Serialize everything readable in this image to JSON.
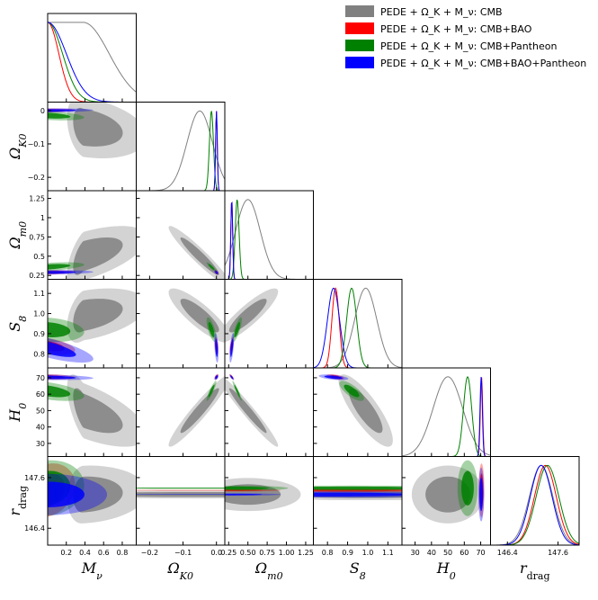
{
  "chart_data": {
    "type": "triangle-corner",
    "legend": [
      {
        "label": "PEDE + Ω_K + M_ν: CMB",
        "color": "#808080"
      },
      {
        "label": "PEDE + Ω_K + M_ν: CMB+BAO",
        "color": "#ff0000"
      },
      {
        "label": "PEDE + Ω_K + M_ν: CMB+Pantheon",
        "color": "#008000"
      },
      {
        "label": "PEDE + Ω_K + M_ν: CMB+BAO+Pantheon",
        "color": "#0000ff"
      }
    ],
    "legend_position": "top-right",
    "parameters": [
      {
        "name": "M_nu",
        "label": "M_ν",
        "range": [
          0,
          0.95
        ],
        "ticks": [
          0.2,
          0.4,
          0.6,
          0.8
        ],
        "tick_labels": [
          "0.2",
          "0.4",
          "0.6",
          "0.8"
        ]
      },
      {
        "name": "Omega_K0",
        "label": "Ω_K0",
        "range": [
          -0.24,
          0.025
        ],
        "ticks": [
          -0.2,
          -0.1,
          0.0
        ],
        "tick_labels": [
          "−0.2",
          "−0.1",
          "0.0"
        ],
        "ytick_labels": [
          "−0.2",
          "−0.1",
          "0"
        ]
      },
      {
        "name": "Omega_m0",
        "label": "Ω_m0",
        "range": [
          0.2,
          1.35
        ],
        "ticks": [
          0.25,
          0.5,
          0.75,
          1.0,
          1.25
        ],
        "tick_labels": [
          "0.25",
          "0.50",
          "0.75",
          "1.00",
          "1.25"
        ],
        "ytick_labels": [
          "0.25",
          "0.5",
          "0.75",
          "1",
          "1.25"
        ]
      },
      {
        "name": "S8",
        "label": "S_8",
        "range": [
          0.73,
          1.17
        ],
        "ticks": [
          0.8,
          0.9,
          1.0,
          1.1
        ],
        "tick_labels": [
          "0.8",
          "0.9",
          "1.0",
          "1.1"
        ]
      },
      {
        "name": "H0",
        "label": "H_0",
        "range": [
          22,
          76
        ],
        "ticks": [
          30,
          40,
          50,
          60,
          70
        ],
        "tick_labels": [
          "30",
          "40",
          "50",
          "60",
          "70"
        ]
      },
      {
        "name": "r_drag",
        "label": "r_drag",
        "range": [
          146.0,
          148.1
        ],
        "ticks": [
          146.4,
          147.6
        ],
        "tick_labels": [
          "146.4",
          "147.6"
        ]
      }
    ],
    "series": [
      {
        "name": "CMB",
        "color": "#808080",
        "mean": {
          "M_nu": 0.38,
          "Omega_K0": -0.05,
          "Omega_m0": 0.5,
          "S8": 0.99,
          "H0": 50,
          "r_drag": 147.2
        },
        "sigma": {
          "M_nu": 0.28,
          "Omega_K0": 0.038,
          "Omega_m0": 0.16,
          "S8": 0.055,
          "H0": 9,
          "r_drag": 0.28
        },
        "rho": [
          [
            1,
            -0.3,
            0.6,
            0.4,
            -0.65,
            0.1
          ],
          [
            -0.3,
            1,
            -0.95,
            -0.85,
            0.95,
            0.0
          ],
          [
            0.6,
            -0.95,
            1,
            0.88,
            -0.97,
            0.0
          ],
          [
            0.4,
            -0.85,
            0.88,
            1,
            -0.82,
            0.0
          ],
          [
            -0.65,
            0.95,
            -0.97,
            -0.82,
            1,
            0.0
          ],
          [
            0.1,
            0.0,
            0.0,
            0.0,
            0.0,
            1
          ]
        ],
        "half_normal": [
          "M_nu"
        ]
      },
      {
        "name": "CMB+BAO",
        "color": "#ff0000",
        "mean": {
          "M_nu": 0.0,
          "Omega_K0": 0.0,
          "Omega_m0": 0.29,
          "S8": 0.84,
          "H0": 70.5,
          "r_drag": 147.3
        },
        "sigma": {
          "M_nu": 0.12,
          "Omega_K0": 0.0025,
          "Omega_m0": 0.012,
          "S8": 0.018,
          "H0": 0.7,
          "r_drag": 0.26
        },
        "rho": [
          [
            1,
            0.2,
            0.2,
            -0.5,
            -0.2,
            0.2
          ],
          [
            0.2,
            1,
            -0.5,
            -0.4,
            0.5,
            0.0
          ],
          [
            0.2,
            -0.5,
            1,
            0.6,
            -0.8,
            0.0
          ],
          [
            -0.5,
            -0.4,
            0.6,
            1,
            -0.5,
            0.0
          ],
          [
            -0.2,
            0.5,
            -0.8,
            -0.5,
            1,
            0.0
          ],
          [
            0.2,
            0.0,
            0.0,
            0.0,
            0.0,
            1
          ]
        ],
        "half_normal": [
          "M_nu"
        ]
      },
      {
        "name": "CMB+Pantheon",
        "color": "#008000",
        "mean": {
          "M_nu": 0.0,
          "Omega_K0": -0.015,
          "Omega_m0": 0.36,
          "S8": 0.92,
          "H0": 62,
          "r_drag": 147.35
        },
        "sigma": {
          "M_nu": 0.16,
          "Omega_K0": 0.006,
          "Omega_m0": 0.025,
          "S8": 0.025,
          "H0": 2.5,
          "r_drag": 0.27
        },
        "rho": [
          [
            1,
            -0.4,
            0.5,
            -0.2,
            -0.5,
            0.1
          ],
          [
            -0.4,
            1,
            -0.9,
            -0.7,
            0.9,
            0.0
          ],
          [
            0.5,
            -0.9,
            1,
            0.8,
            -0.95,
            0.0
          ],
          [
            -0.2,
            -0.7,
            0.8,
            1,
            -0.75,
            0.0
          ],
          [
            -0.5,
            0.9,
            -0.95,
            -0.75,
            1,
            0.0
          ],
          [
            0.1,
            0.0,
            0.0,
            0.0,
            0.0,
            1
          ]
        ],
        "half_normal": [
          "M_nu"
        ]
      },
      {
        "name": "CMB+BAO+Pantheon",
        "color": "#0000ff",
        "mean": {
          "M_nu": 0.0,
          "Omega_K0": 0.0,
          "Omega_m0": 0.29,
          "S8": 0.83,
          "H0": 70.3,
          "r_drag": 147.2
        },
        "sigma": {
          "M_nu": 0.2,
          "Omega_K0": 0.0025,
          "Omega_m0": 0.012,
          "S8": 0.03,
          "H0": 0.7,
          "r_drag": 0.26
        },
        "rho": [
          [
            1,
            0.2,
            0.2,
            -0.75,
            -0.3,
            0.0
          ],
          [
            0.2,
            1,
            -0.5,
            -0.4,
            0.5,
            0.0
          ],
          [
            0.2,
            -0.5,
            1,
            0.6,
            -0.8,
            0.0
          ],
          [
            -0.75,
            -0.4,
            0.6,
            1,
            -0.5,
            0.0
          ],
          [
            -0.3,
            0.5,
            -0.8,
            -0.5,
            1,
            0.0
          ],
          [
            0.0,
            0.0,
            0.0,
            0.0,
            0.0,
            1
          ]
        ],
        "half_normal": [
          "M_nu"
        ]
      }
    ]
  }
}
